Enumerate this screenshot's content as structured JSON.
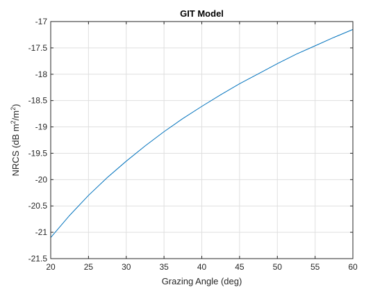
{
  "chart_data": {
    "type": "line",
    "title": "GIT Model",
    "xlabel": "Grazing Angle (deg)",
    "ylabel": {
      "prefix": "NRCS  (dB  m",
      "sup1": "2",
      "middle": "/m",
      "sup2": "2",
      "suffix": ")"
    },
    "xlim": [
      20,
      60
    ],
    "ylim": [
      -21.5,
      -17
    ],
    "xticks": [
      20,
      25,
      30,
      35,
      40,
      45,
      50,
      55,
      60
    ],
    "xtick_labels": [
      "20",
      "25",
      "30",
      "35",
      "40",
      "45",
      "50",
      "55",
      "60"
    ],
    "yticks": [
      -17,
      -17.5,
      -18,
      -18.5,
      -19,
      -19.5,
      -20,
      -20.5,
      -21,
      -21.5
    ],
    "ytick_labels": [
      "-17",
      "-17.5",
      "-18",
      "-18.5",
      "-19",
      "-19.5",
      "-20",
      "-20.5",
      "-21",
      "-21.5"
    ],
    "grid": true,
    "series": [
      {
        "color": "#0072bd",
        "x": [
          20,
          22.5,
          25,
          27.5,
          30,
          32.5,
          35,
          37.5,
          40,
          42.5,
          45,
          47.5,
          50,
          52.5,
          55,
          57.5,
          60
        ],
        "y": [
          -21.1,
          -20.68,
          -20.3,
          -19.96,
          -19.65,
          -19.36,
          -19.09,
          -18.84,
          -18.61,
          -18.39,
          -18.18,
          -17.99,
          -17.8,
          -17.62,
          -17.46,
          -17.3,
          -17.15
        ]
      }
    ]
  }
}
